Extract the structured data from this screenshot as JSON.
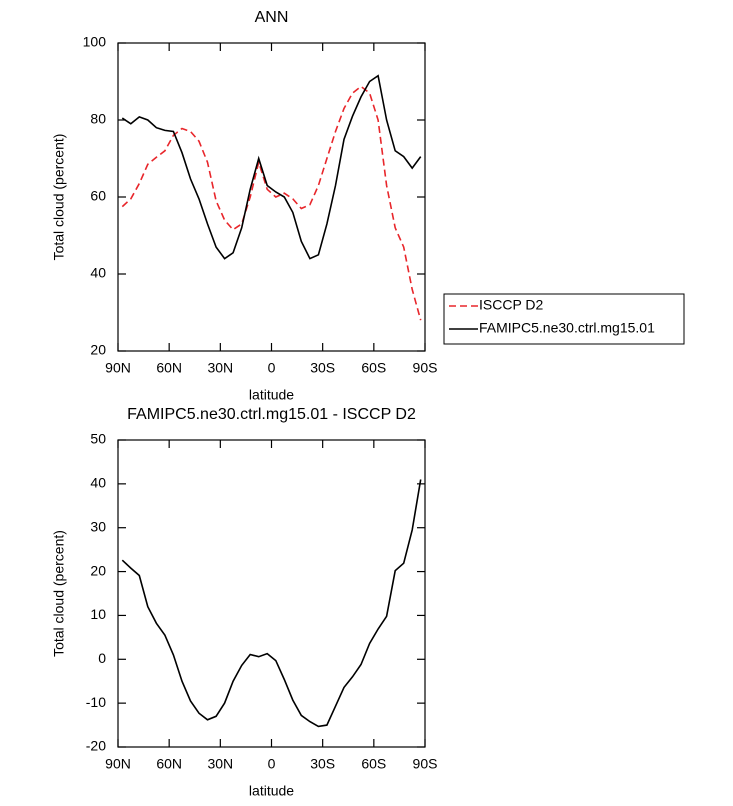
{
  "chart_data": [
    {
      "type": "line",
      "title": "ANN",
      "xlabel": "latitude",
      "ylabel": "Total cloud (percent)",
      "x": [
        87.5,
        82.5,
        77.5,
        72.5,
        67.5,
        62.5,
        57.5,
        52.5,
        47.5,
        42.5,
        37.5,
        32.5,
        27.5,
        22.5,
        17.5,
        12.5,
        7.5,
        2.5,
        -2.5,
        -7.5,
        -12.5,
        -17.5,
        -22.5,
        -27.5,
        -32.5,
        -37.5,
        -42.5,
        -47.5,
        -52.5,
        -57.5,
        -62.5,
        -67.5,
        -72.5,
        -77.5,
        -82.5,
        -87.5
      ],
      "series": [
        {
          "name": "ISCCP D2",
          "color": "#e8262b",
          "linestyle": "dashed",
          "values": [
            57.5,
            59.5,
            63.5,
            68.5,
            70.3,
            72,
            76,
            77.8,
            77,
            74.5,
            69,
            59,
            54,
            51.5,
            53,
            60,
            69,
            62,
            60,
            61,
            59.5,
            57,
            58,
            63,
            70,
            77,
            83,
            87,
            88.7,
            87,
            80,
            63,
            52,
            47,
            36,
            28
          ]
        },
        {
          "name": "FAMIPC5.ne30.ctrl.mg15.01",
          "color": "#000000",
          "linestyle": "solid",
          "values": [
            80.5,
            79,
            80.8,
            80,
            78,
            77.3,
            77,
            71.5,
            64.7,
            59.5,
            53,
            47,
            44,
            45.5,
            52,
            62,
            70,
            63,
            61.3,
            60,
            56,
            48.5,
            44,
            45,
            53,
            63,
            75,
            81,
            86,
            90,
            91.5,
            80,
            72,
            70.5,
            67.5,
            70.5
          ]
        }
      ],
      "xlim": [
        90,
        -90
      ],
      "xticks": [
        {
          "value": 90,
          "label": "90N"
        },
        {
          "value": 60,
          "label": "60N"
        },
        {
          "value": 30,
          "label": "30N"
        },
        0,
        {
          "value": -30,
          "label": "30S"
        },
        {
          "value": -60,
          "label": "60S"
        },
        {
          "value": -90,
          "label": "90S"
        }
      ],
      "ylim": [
        20,
        100
      ],
      "yticks": [
        20,
        40,
        60,
        80,
        100
      ],
      "legend": "right"
    },
    {
      "type": "line",
      "title": "FAMIPC5.ne30.ctrl.mg15.01 - ISCCP D2",
      "xlabel": "latitude",
      "ylabel": "Total cloud (percent)",
      "x": [
        87.5,
        82.5,
        77.5,
        72.5,
        67.5,
        62.5,
        57.5,
        52.5,
        47.5,
        42.5,
        37.5,
        32.5,
        27.5,
        22.5,
        17.5,
        12.5,
        7.5,
        2.5,
        -2.5,
        -7.5,
        -12.5,
        -17.5,
        -22.5,
        -27.5,
        -32.5,
        -37.5,
        -42.5,
        -47.5,
        -52.5,
        -57.5,
        -62.5,
        -67.5,
        -72.5,
        -77.5,
        -82.5,
        -87.5
      ],
      "series": [
        {
          "color": "#000000",
          "linestyle": "solid",
          "values": [
            22.6,
            20.8,
            19.1,
            12,
            8.2,
            5.5,
            1,
            -5,
            -9.5,
            -12.3,
            -13.8,
            -13,
            -10,
            -5,
            -1.4,
            1.1,
            0.6,
            1.3,
            -0.3,
            -4.6,
            -9.3,
            -12.8,
            -14.2,
            -15.3,
            -15,
            -10.7,
            -6.4,
            -4,
            -1.2,
            3.6,
            6.9,
            9.8,
            20.2,
            21.9,
            29.5,
            41
          ]
        }
      ],
      "xlim": [
        90,
        -90
      ],
      "xticks": [
        {
          "value": 90,
          "label": "90N"
        },
        {
          "value": 60,
          "label": "60N"
        },
        {
          "value": 30,
          "label": "30N"
        },
        0,
        {
          "value": -30,
          "label": "30S"
        },
        {
          "value": -60,
          "label": "60S"
        },
        {
          "value": -90,
          "label": "90S"
        }
      ],
      "ylim": [
        -20,
        50
      ],
      "yticks": [
        -20,
        -10,
        0,
        10,
        20,
        30,
        40,
        50
      ]
    }
  ]
}
